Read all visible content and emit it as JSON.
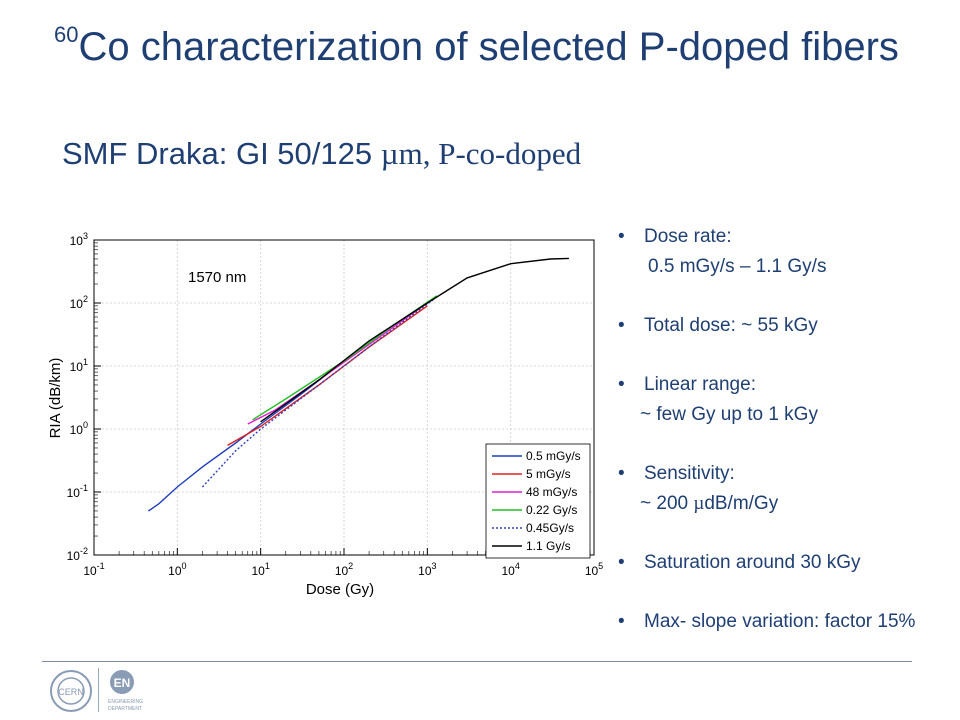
{
  "slide": {
    "title_sup": "60",
    "title": "Co characterization of selected P-doped fibers",
    "subtitle_a": "SMF Draka: GI 50/125 ",
    "subtitle_b": "µm, P-co-doped"
  },
  "bullets": [
    {
      "main": "Dose rate:",
      "sub": "0.5 mGy/s – 1.1 Gy/s"
    },
    {
      "main": "Total dose: ~ 55 kGy",
      "sub": ""
    },
    {
      "main": "Linear range:",
      "sub": "~ few Gy up to 1 kGy"
    },
    {
      "main": "Sensitivity:",
      "sub_pre": "~ 200 ",
      "sub_mu": "µ",
      "sub_post": "dB/m/Gy"
    },
    {
      "main": "Saturation around 30 kGy",
      "sub": ""
    },
    {
      "main": "Max- slope variation: factor 15%",
      "sub": ""
    }
  ],
  "logos": {
    "cern": "CERN",
    "en": "EN",
    "en_sub1": "ENGINEERING",
    "en_sub2": "DEPARTMENT"
  },
  "chart_data": {
    "type": "line",
    "annotation": "1570 nm",
    "xlabel": "Dose (Gy)",
    "ylabel": "RIA (dB/km)",
    "xscale": "log",
    "yscale": "log",
    "xlim": [
      0.1,
      100000
    ],
    "ylim": [
      0.01,
      1000
    ],
    "xticks": [
      "10-1",
      "100",
      "101",
      "102",
      "103",
      "104",
      "105"
    ],
    "yticks": [
      "10-2",
      "10-1",
      "100",
      "101",
      "102",
      "103"
    ],
    "grid": true,
    "legend_position": "lower-right",
    "series": [
      {
        "name": "0.5 mGy/s",
        "color": "#1f3fbf",
        "dash": "solid",
        "x": [
          0.45,
          0.6,
          1,
          2,
          5,
          10,
          30,
          100
        ],
        "y": [
          0.05,
          0.065,
          0.12,
          0.25,
          0.6,
          1.2,
          3.5,
          12
        ]
      },
      {
        "name": "5 mGy/s",
        "color": "#e02020",
        "dash": "solid",
        "x": [
          4,
          10,
          50,
          200,
          1000
        ],
        "y": [
          0.55,
          1.1,
          5,
          20,
          90
        ]
      },
      {
        "name": "48 mGy/s",
        "color": "#e020d0",
        "dash": "solid",
        "x": [
          7,
          15,
          50,
          200,
          1000
        ],
        "y": [
          1.2,
          2,
          6,
          22,
          100
        ]
      },
      {
        "name": "0.22 Gy/s",
        "color": "#20c020",
        "dash": "solid",
        "x": [
          8,
          20,
          100,
          400,
          1300
        ],
        "y": [
          1.4,
          3,
          12,
          45,
          130
        ]
      },
      {
        "name": "0.45Gy/s",
        "color": "#3040c0",
        "dash": "dotted",
        "x": [
          2,
          5,
          10,
          50,
          300,
          1200
        ],
        "y": [
          0.12,
          0.45,
          1.0,
          5,
          30,
          115
        ]
      },
      {
        "name": "1.1 Gy/s",
        "color": "#000000",
        "dash": "solid",
        "x": [
          10,
          50,
          200,
          1000,
          3000,
          10000,
          30000,
          50000
        ],
        "y": [
          1.3,
          6,
          25,
          100,
          250,
          420,
          500,
          510
        ]
      }
    ]
  }
}
